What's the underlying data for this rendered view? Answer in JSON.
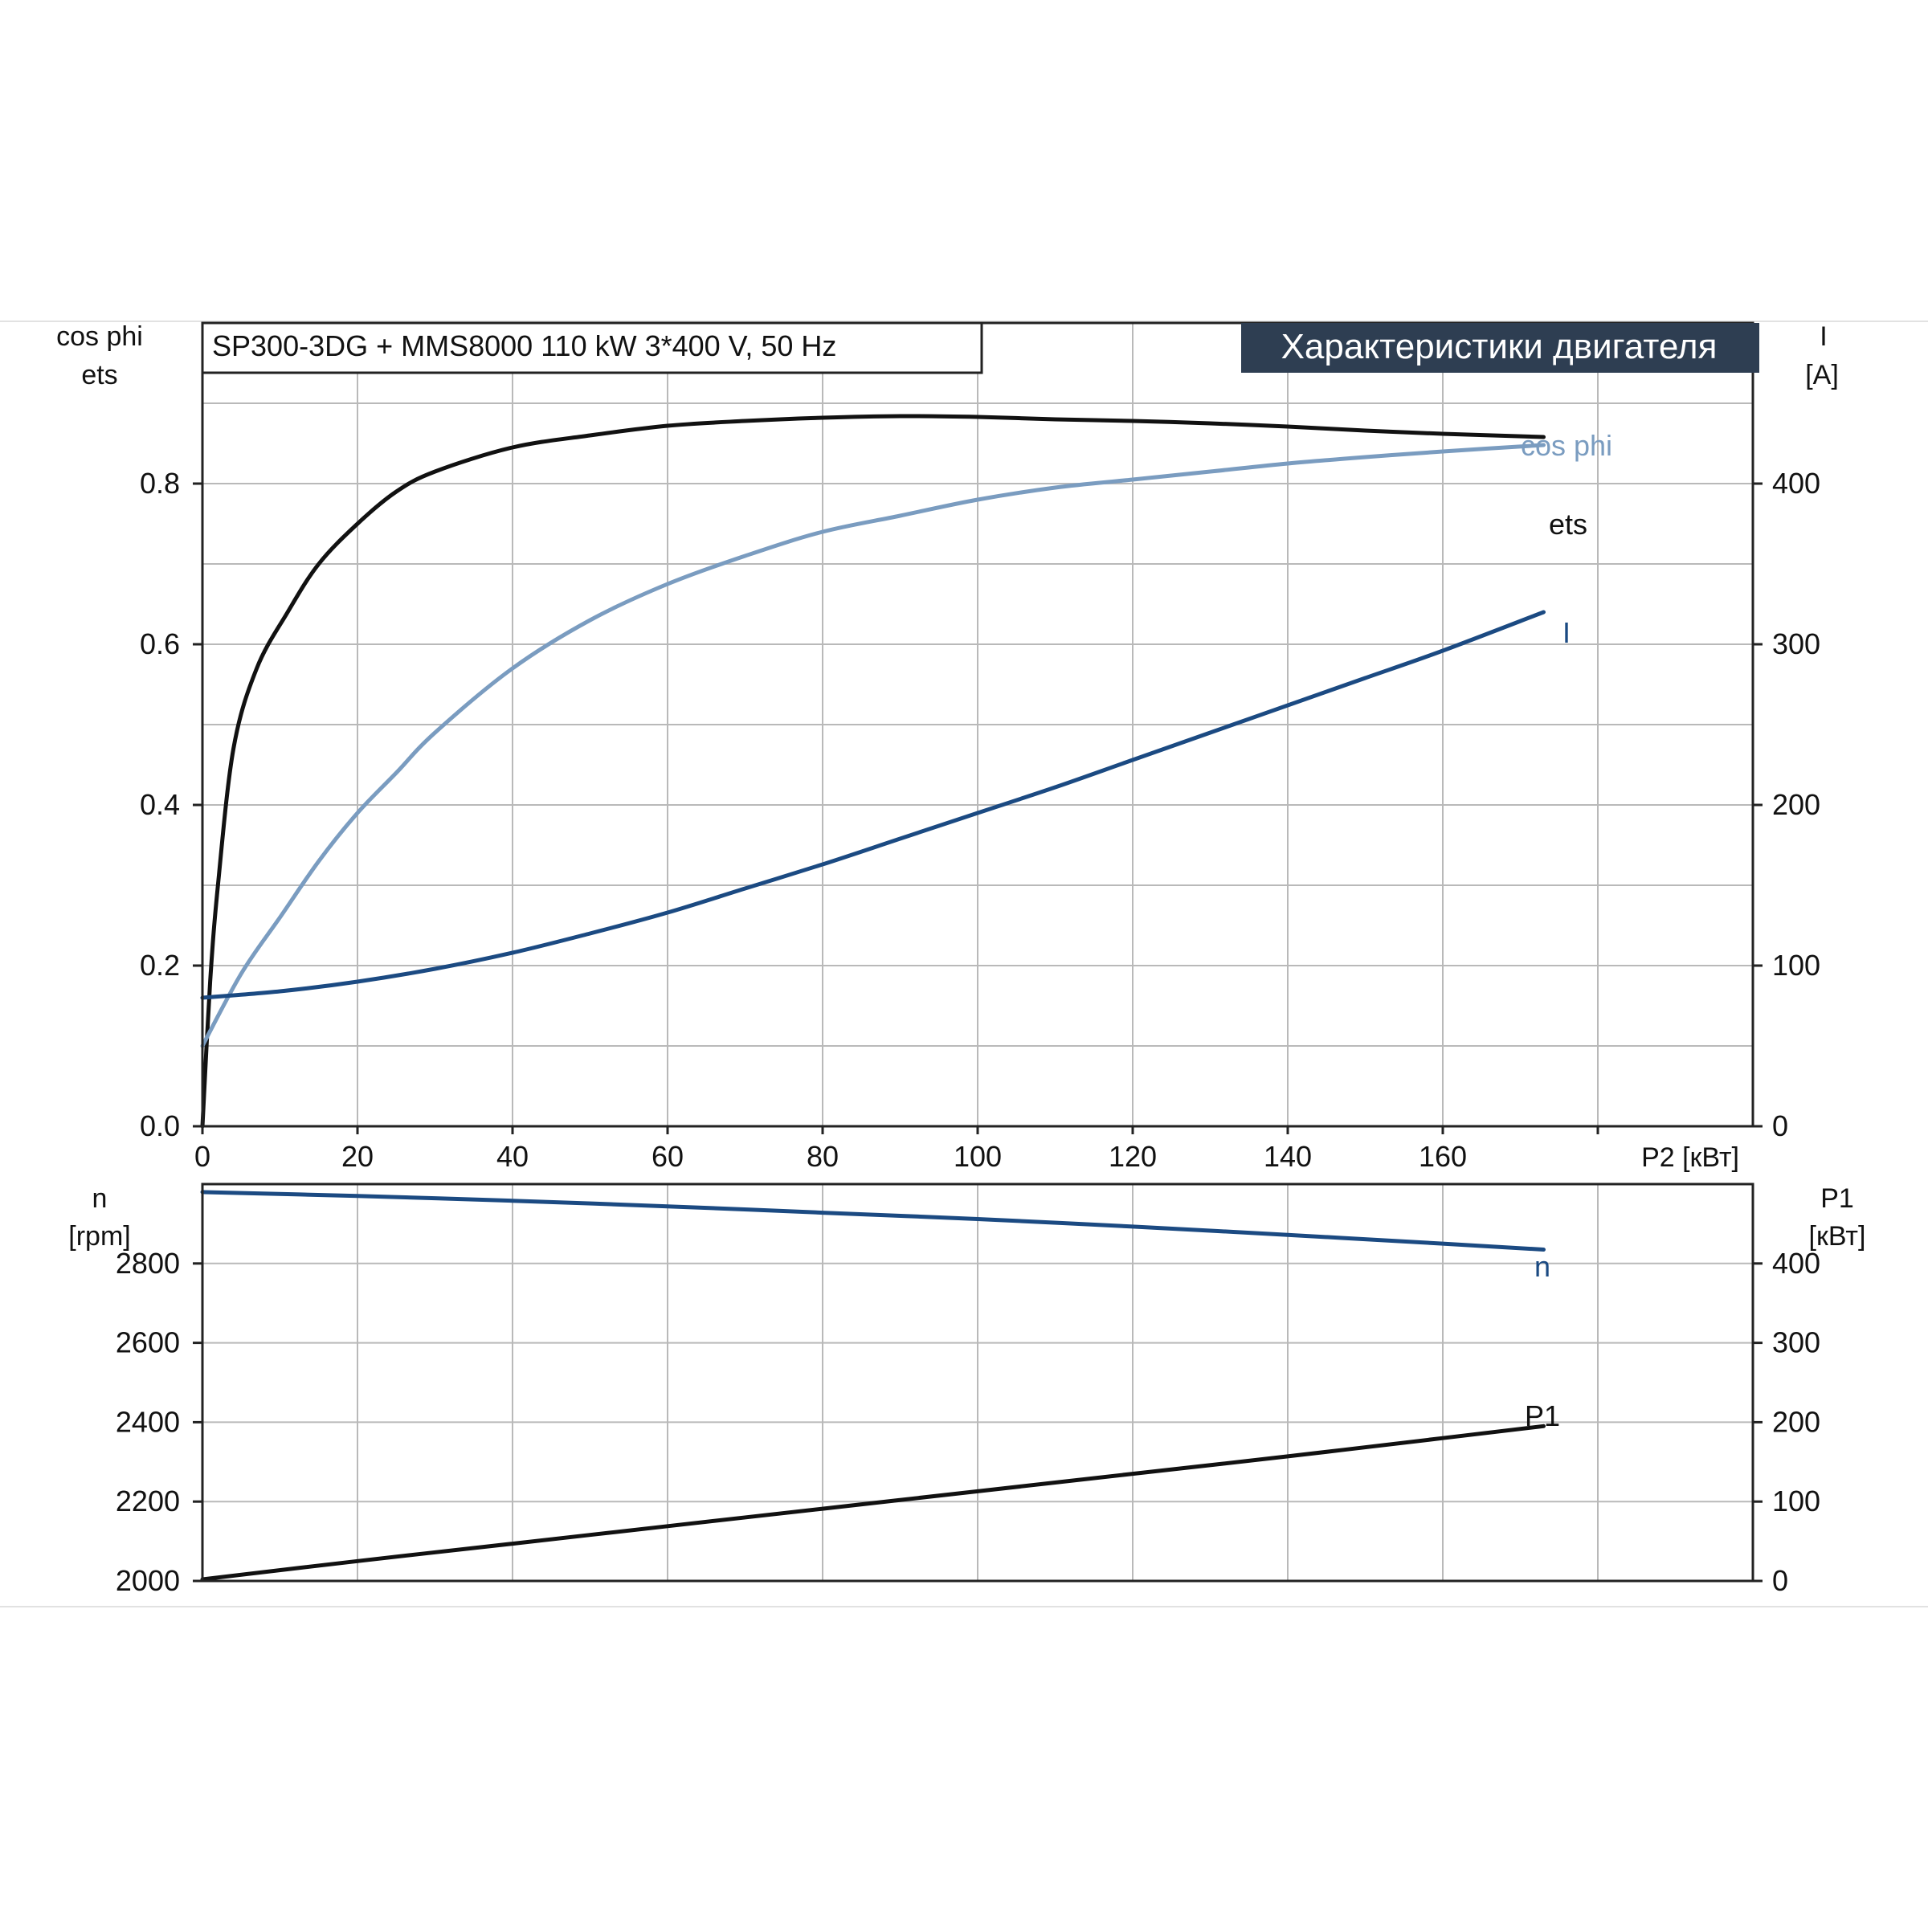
{
  "title": "SP300-3DG + MMS8000   110 kW   3*400 V, 50 Hz",
  "badge": "Характеристики двигателя",
  "colors": {
    "ets": "#111111",
    "cos_phi": "#7a9cc0",
    "I": "#1b4a82",
    "n": "#1b4a82",
    "P1": "#111111",
    "badge_bg": "#2e3e52",
    "badge_text": "#ffffff"
  },
  "chart_data": [
    {
      "type": "line",
      "xlabel": "P2 [кВт]",
      "x_ticks": [
        "0",
        "20",
        "40",
        "60",
        "80",
        "100",
        "120",
        "140",
        "160"
      ],
      "xlim": [
        0,
        200
      ],
      "left_axis": {
        "label_lines": [
          "cos phi",
          "ets"
        ],
        "ylim": [
          0,
          1.0
        ],
        "ticks": [
          "0.0",
          "0.2",
          "0.4",
          "0.6",
          "0.8"
        ]
      },
      "right_axis": {
        "label_lines": [
          "I",
          "[A]"
        ],
        "ylim": [
          0,
          500
        ],
        "ticks": [
          "0",
          "100",
          "200",
          "300",
          "400"
        ]
      },
      "series": [
        {
          "name": "ets",
          "axis": "left",
          "x": [
            0,
            1,
            2,
            4,
            7,
            11,
            15,
            20,
            25,
            30,
            40,
            50,
            60,
            70,
            80,
            90,
            100,
            110,
            120,
            130,
            140,
            150,
            160,
            173
          ],
          "y": [
            0.0,
            0.18,
            0.3,
            0.47,
            0.57,
            0.64,
            0.7,
            0.75,
            0.79,
            0.815,
            0.845,
            0.86,
            0.872,
            0.878,
            0.882,
            0.884,
            0.883,
            0.88,
            0.878,
            0.875,
            0.871,
            0.866,
            0.862,
            0.858
          ]
        },
        {
          "name": "cos phi",
          "axis": "left",
          "x": [
            0,
            5,
            10,
            15,
            20,
            25,
            30,
            40,
            50,
            60,
            70,
            80,
            90,
            100,
            110,
            120,
            130,
            140,
            150,
            160,
            173
          ],
          "y": [
            0.1,
            0.19,
            0.26,
            0.33,
            0.39,
            0.44,
            0.49,
            0.57,
            0.63,
            0.675,
            0.71,
            0.74,
            0.76,
            0.78,
            0.795,
            0.805,
            0.815,
            0.825,
            0.833,
            0.84,
            0.848
          ]
        },
        {
          "name": "I",
          "axis": "right",
          "x": [
            0,
            10,
            20,
            30,
            40,
            50,
            60,
            70,
            80,
            90,
            100,
            110,
            120,
            130,
            140,
            150,
            160,
            173
          ],
          "y": [
            80,
            84,
            90,
            98,
            108,
            120,
            133,
            148,
            163,
            179,
            195,
            211,
            228,
            245,
            262,
            279,
            296,
            320
          ]
        }
      ]
    },
    {
      "type": "line",
      "xlim": [
        0,
        200
      ],
      "left_axis": {
        "label_lines": [
          "n",
          "[rpm]"
        ],
        "ylim": [
          2000,
          3000
        ],
        "ticks": [
          "2000",
          "2200",
          "2400",
          "2600",
          "2800"
        ]
      },
      "right_axis": {
        "label_lines": [
          "P1",
          "[кВт]"
        ],
        "ylim": [
          0,
          500
        ],
        "ticks": [
          "0",
          "100",
          "200",
          "300",
          "400"
        ]
      },
      "series": [
        {
          "name": "n",
          "axis": "left",
          "x": [
            0,
            20,
            40,
            60,
            80,
            100,
            120,
            140,
            160,
            173
          ],
          "y": [
            2980,
            2970,
            2958,
            2944,
            2928,
            2912,
            2893,
            2872,
            2850,
            2835
          ]
        },
        {
          "name": "P1",
          "axis": "right",
          "x": [
            0,
            20,
            40,
            60,
            80,
            100,
            120,
            140,
            160,
            173
          ],
          "y": [
            2,
            25,
            47,
            69,
            91,
            113,
            135,
            157,
            180,
            195
          ]
        }
      ]
    }
  ]
}
